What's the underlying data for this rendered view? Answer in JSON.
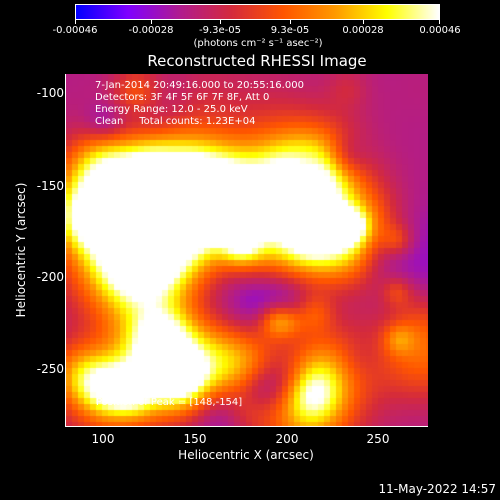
{
  "colorbar": {
    "tick_labels": [
      "-0.00046",
      "-0.00028",
      "-9.3e-05",
      "9.3e-05",
      "0.00028",
      "0.00046"
    ],
    "units": "(photons cm⁻² s⁻¹ asec⁻²)",
    "range": [
      -0.00046,
      0.00046
    ]
  },
  "title": "Reconstructed RHESSI Image",
  "info": {
    "time": "7-Jan-2014 20:49:16.000 to 20:55:16.000",
    "detectors": "Detectors: 3F 4F 5F 6F 7F 8F, Att 0",
    "energy": "Energy Range: 12.0 - 25.0 keV",
    "method": "Clean     Total counts: 1.23E+04"
  },
  "peak": "Position of Peak = [148,-154]",
  "axes": {
    "xlabel": "Heliocentric X (arcsec)",
    "ylabel": "Heliocentric Y (arcsec)",
    "xticks": [
      "100",
      "150",
      "200",
      "250"
    ],
    "yticks": [
      "-100",
      "-150",
      "-200",
      "-250"
    ]
  },
  "footer_date": "11-May-2022 14:57",
  "colors": {
    "cmap": [
      "#0000ff",
      "#7f00ff",
      "#b01b8f",
      "#d42a3c",
      "#ff5500",
      "#ff9900",
      "#ffff00",
      "#ffffff"
    ]
  }
}
